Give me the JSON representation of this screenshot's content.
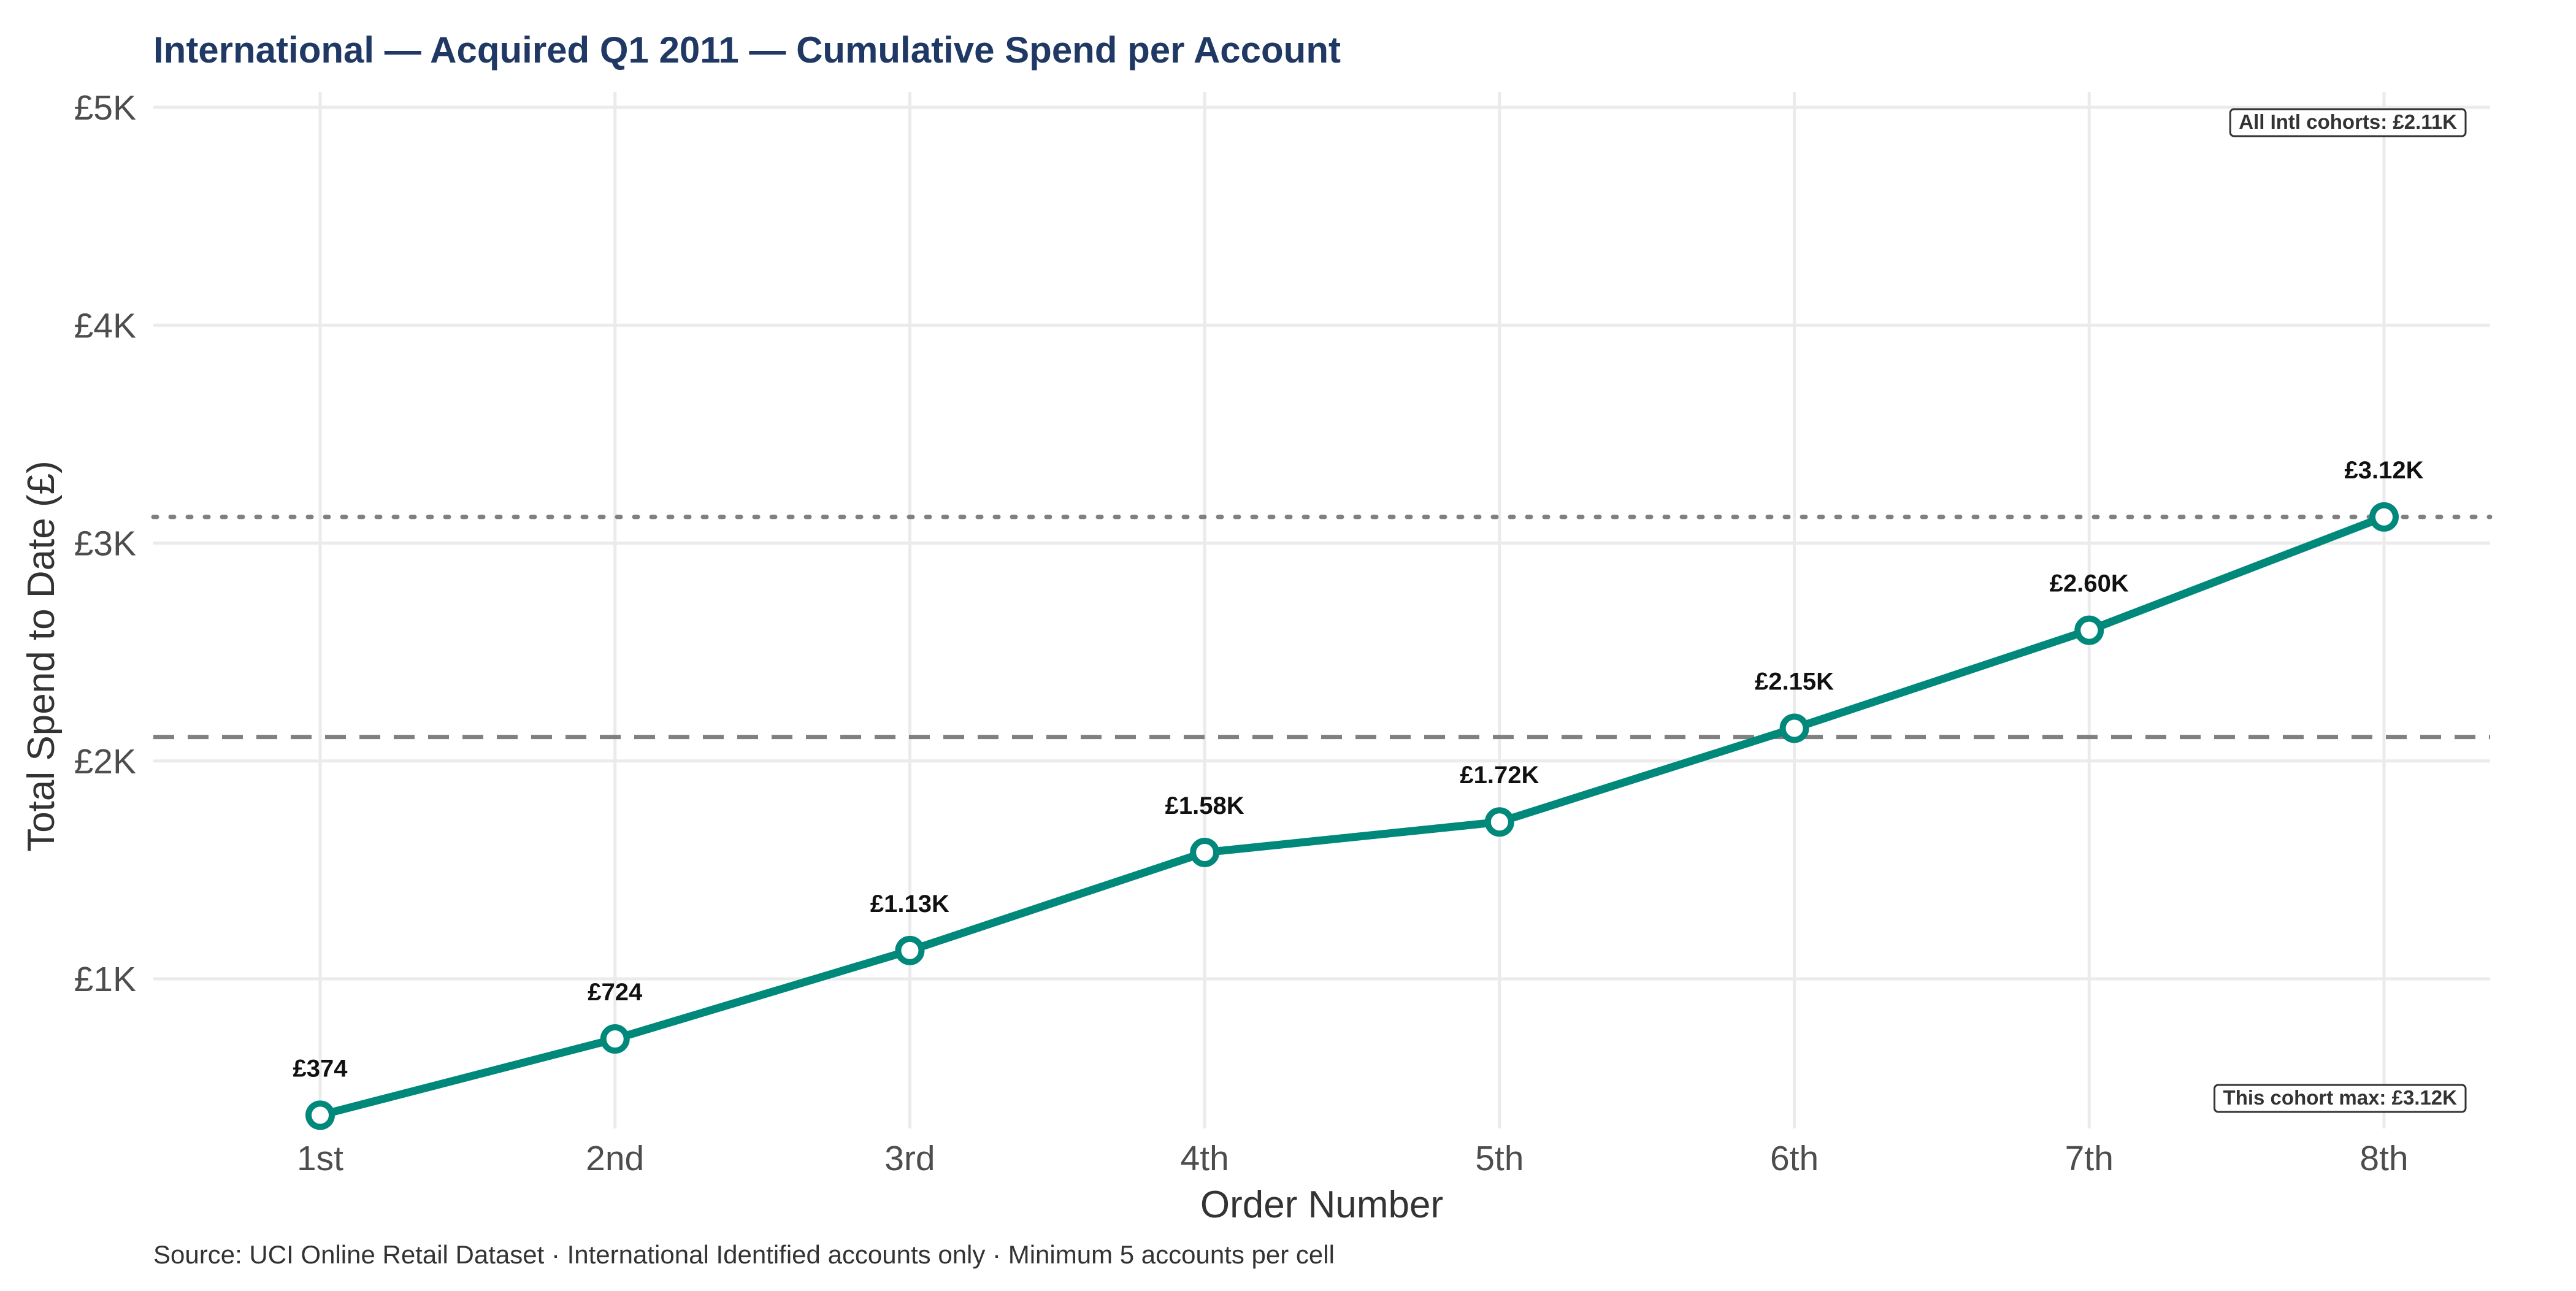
{
  "chart_data": {
    "type": "line",
    "title": "International — Acquired Q1 2011 — Cumulative Spend per Account",
    "xlabel": "Order Number",
    "ylabel": "Total Spend to Date (£)",
    "categories": [
      "1st",
      "2nd",
      "3rd",
      "4th",
      "5th",
      "6th",
      "7th",
      "8th"
    ],
    "series": [
      {
        "values": [
          374,
          724,
          1130,
          1580,
          1720,
          2150,
          2600,
          3120
        ],
        "labels": [
          "£374",
          "£724",
          "£1.13K",
          "£1.58K",
          "£1.72K",
          "£2.15K",
          "£2.60K",
          "£3.12K"
        ]
      }
    ],
    "ylim": [
      340,
      5000
    ],
    "yticks": [
      1000,
      2000,
      3000,
      4000,
      5000
    ],
    "ytick_labels": [
      "£1K",
      "£2K",
      "£3K",
      "£4K",
      "£5K"
    ],
    "reference_lines": [
      {
        "value": 2110,
        "style": "dashed",
        "label": "All Intl cohorts: £2.11K",
        "label_position": "top-right"
      },
      {
        "value": 3120,
        "style": "dotted",
        "label": "This cohort max: £3.12K",
        "label_position": "bottom-right"
      }
    ],
    "caption": "Source: UCI Online Retail Dataset · International Identified accounts only · Minimum 5 accounts per cell",
    "grid": true,
    "colors": {
      "line": "#00897b",
      "title": "#1f3864",
      "grid": "#ebebeb",
      "reference": "#808080"
    }
  }
}
